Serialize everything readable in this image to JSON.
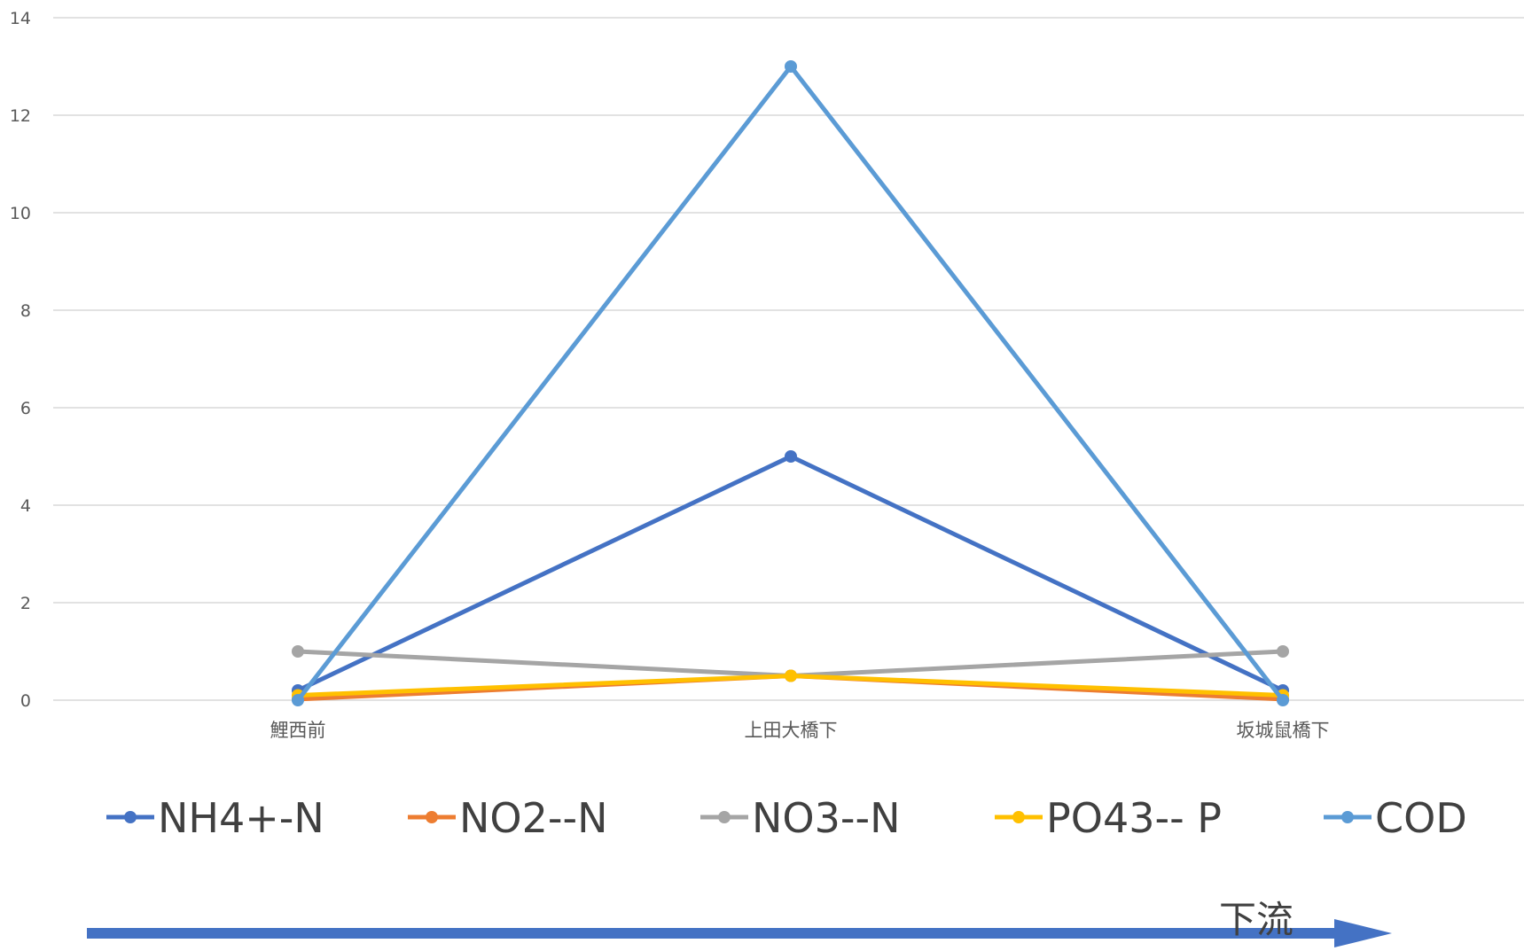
{
  "chart_data": {
    "type": "line",
    "categories": [
      "鯉西前",
      "上田大橋下",
      "坂城鼠橋下"
    ],
    "series": [
      {
        "name": "NH4+-N",
        "values": [
          0.2,
          5.0,
          0.2
        ],
        "color": "#4472C4"
      },
      {
        "name": "NO2--N",
        "values": [
          0.02,
          0.5,
          0.02
        ],
        "color": "#ED7D31"
      },
      {
        "name": "NO3--N",
        "values": [
          1.0,
          0.5,
          1.0
        ],
        "color": "#A5A5A5"
      },
      {
        "name": "PO43-- P",
        "values": [
          0.1,
          0.5,
          0.1
        ],
        "color": "#FFC000"
      },
      {
        "name": "COD",
        "values": [
          0.0,
          13.0,
          0.0
        ],
        "color": "#5B9BD5"
      }
    ],
    "y_ticks": [
      "0",
      "2",
      "4",
      "6",
      "8",
      "10",
      "12",
      "14"
    ],
    "ylim": [
      0,
      14
    ],
    "grid": true,
    "legend_position": "bottom",
    "annotation": {
      "label": "下流",
      "color": "#4472C4"
    }
  }
}
